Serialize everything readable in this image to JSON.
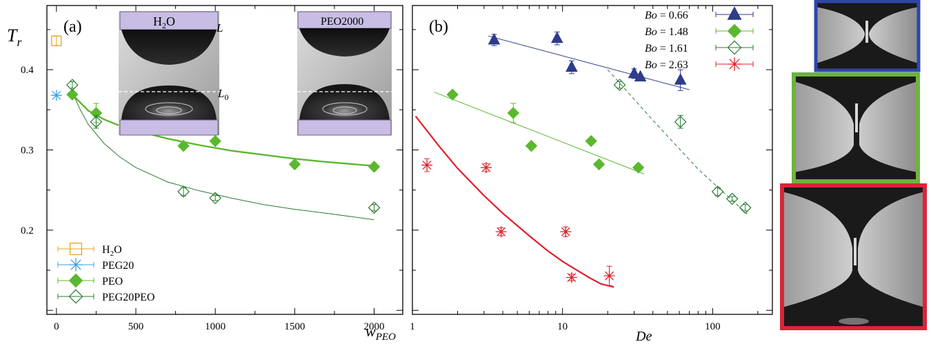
{
  "chart_data": [
    {
      "type": "scatter",
      "panel_label": "(a)",
      "ylabel": "T",
      "ylabel_sub": "r",
      "xlabel": "w",
      "xlabel_sub": "PEO",
      "xlim": [
        -60,
        2180
      ],
      "ylim": [
        0.095,
        0.48
      ],
      "xticks": [
        0,
        500,
        1000,
        1500,
        2000
      ],
      "yticks": [
        0.2,
        0.3,
        0.4
      ],
      "legend_position": "bottom-left",
      "series": [
        {
          "name": "H2O",
          "legend_main": "H",
          "legend_sub": "2",
          "legend_tail": "O",
          "marker": "open-square",
          "color": "#e8a21e",
          "points": [
            {
              "x": 0,
              "y": 0.436,
              "err": 0.006
            }
          ]
        },
        {
          "name": "PEG20",
          "marker": "asterisk",
          "color": "#3aa0e0",
          "points": [
            {
              "x": 0,
              "y": 0.368,
              "err": 0
            }
          ]
        },
        {
          "name": "PEO",
          "marker": "filled-diamond",
          "color": "#5ab82e",
          "points": [
            {
              "x": 100,
              "y": 0.369,
              "err": 0
            },
            {
              "x": 250,
              "y": 0.346,
              "err": 0.012
            },
            {
              "x": 800,
              "y": 0.305,
              "err": 0
            },
            {
              "x": 1000,
              "y": 0.311,
              "err": 0
            },
            {
              "x": 1500,
              "y": 0.282,
              "err": 0
            },
            {
              "x": 2000,
              "y": 0.279,
              "err": 0.004
            }
          ],
          "fit": [
            [
              100,
              0.369
            ],
            [
              200,
              0.349
            ],
            [
              300,
              0.338
            ],
            [
              400,
              0.33
            ],
            [
              500,
              0.324
            ],
            [
              700,
              0.314
            ],
            [
              900,
              0.306
            ],
            [
              1100,
              0.299
            ],
            [
              1300,
              0.294
            ],
            [
              1500,
              0.289
            ],
            [
              1700,
              0.285
            ],
            [
              2000,
              0.28
            ]
          ]
        },
        {
          "name": "PEG20PEO",
          "marker": "open-diamond",
          "color": "#2a7a32",
          "points": [
            {
              "x": 100,
              "y": 0.381,
              "err": 0.004
            },
            {
              "x": 250,
              "y": 0.335,
              "err": 0.008
            },
            {
              "x": 800,
              "y": 0.248,
              "err": 0.005
            },
            {
              "x": 1000,
              "y": 0.24,
              "err": 0.003
            },
            {
              "x": 2000,
              "y": 0.228,
              "err": 0.004
            }
          ],
          "fit": [
            [
              100,
              0.372
            ],
            [
              150,
              0.35
            ],
            [
              200,
              0.332
            ],
            [
              300,
              0.308
            ],
            [
              400,
              0.291
            ],
            [
              500,
              0.278
            ],
            [
              700,
              0.26
            ],
            [
              900,
              0.249
            ],
            [
              1100,
              0.24
            ],
            [
              1300,
              0.232
            ],
            [
              1500,
              0.226
            ],
            [
              1700,
              0.221
            ],
            [
              2000,
              0.213
            ]
          ]
        }
      ],
      "insets": [
        {
          "top_label_main": "H",
          "top_label_sub": "2",
          "top_label_tail": "O",
          "label_L": "L",
          "label_L0": "L",
          "label_L0_sub": "0"
        },
        {
          "top_label_main": "PEO2000"
        }
      ]
    },
    {
      "type": "scatter",
      "panel_label": "(b)",
      "xlabel": "De",
      "xscale": "log",
      "xlim": [
        1,
        250
      ],
      "ylim": [
        0.095,
        0.48
      ],
      "xticks": [
        1,
        10,
        100
      ],
      "legend_position": "top-right",
      "series": [
        {
          "name": "Bo = 0.66",
          "label_var": "Bo",
          "label_val": " = 0.66",
          "marker": "filled-triangle",
          "color": "#2e3a8c",
          "points": [
            {
              "x": 3.5,
              "y": 0.437,
              "err": 0.007
            },
            {
              "x": 9.2,
              "y": 0.439,
              "err": 0.008
            },
            {
              "x": 11.5,
              "y": 0.403,
              "err": 0.008
            },
            {
              "x": 30,
              "y": 0.395,
              "err": 0.006
            },
            {
              "x": 33,
              "y": 0.391,
              "err": 0
            },
            {
              "x": 61,
              "y": 0.387,
              "err": 0.013
            }
          ],
          "fit": [
            [
              3.2,
              0.442
            ],
            [
              70,
              0.375
            ]
          ]
        },
        {
          "name": "Bo = 1.48",
          "label_var": "Bo",
          "label_val": " = 1.48",
          "marker": "filled-diamond",
          "color": "#5ab82e",
          "points": [
            {
              "x": 1.85,
              "y": 0.369,
              "err": 0
            },
            {
              "x": 4.7,
              "y": 0.346,
              "err": 0.012
            },
            {
              "x": 6.2,
              "y": 0.305,
              "err": 0
            },
            {
              "x": 15.5,
              "y": 0.311,
              "err": 0
            },
            {
              "x": 17.5,
              "y": 0.282,
              "err": 0
            },
            {
              "x": 32,
              "y": 0.278,
              "err": 0.004
            }
          ],
          "fit": [
            [
              1.4,
              0.372
            ],
            [
              35,
              0.27
            ]
          ]
        },
        {
          "name": "Bo = 1.61",
          "label_var": "Bo",
          "label_val": " = 1.61",
          "marker": "open-diamond",
          "color": "#2a7a32",
          "points": [
            {
              "x": 24,
              "y": 0.381,
              "err": 0.004
            },
            {
              "x": 61,
              "y": 0.335,
              "err": 0.008
            },
            {
              "x": 108,
              "y": 0.248,
              "err": 0.005
            },
            {
              "x": 135,
              "y": 0.239,
              "err": 0.003
            },
            {
              "x": 165,
              "y": 0.228,
              "err": 0.004
            }
          ],
          "fit": [
            [
              20,
              0.4
            ],
            [
              40,
              0.337
            ],
            [
              80,
              0.276
            ],
            [
              170,
              0.22
            ]
          ],
          "fit_style": "dashed"
        },
        {
          "name": "Bo = 2.63",
          "label_var": "Bo",
          "label_val": " = 2.63",
          "marker": "asterisk",
          "color": "#e0202a",
          "points": [
            {
              "x": 1.25,
              "y": 0.281,
              "err": 0.008
            },
            {
              "x": 3.1,
              "y": 0.278,
              "err": 0.005
            },
            {
              "x": 3.9,
              "y": 0.198,
              "err": 0.005
            },
            {
              "x": 10.5,
              "y": 0.198,
              "err": 0.006
            },
            {
              "x": 11.5,
              "y": 0.141,
              "err": 0.004
            },
            {
              "x": 20.5,
              "y": 0.143,
              "err": 0.012
            }
          ],
          "fit": [
            [
              1.05,
              0.342
            ],
            [
              1.5,
              0.305
            ],
            [
              2,
              0.277
            ],
            [
              3,
              0.243
            ],
            [
              4,
              0.221
            ],
            [
              6,
              0.193
            ],
            [
              8,
              0.174
            ],
            [
              10,
              0.161
            ],
            [
              12,
              0.152
            ],
            [
              15,
              0.141
            ],
            [
              18,
              0.133
            ],
            [
              22,
              0.129
            ]
          ]
        }
      ]
    }
  ],
  "photo_panels": [
    {
      "border_color": "#2f46a8"
    },
    {
      "border_color": "#6db33f"
    },
    {
      "border_color": "#d8253a"
    }
  ],
  "inset_colors": {
    "plate": "#c8bde3",
    "plate_edge": "#6b5e8e"
  }
}
